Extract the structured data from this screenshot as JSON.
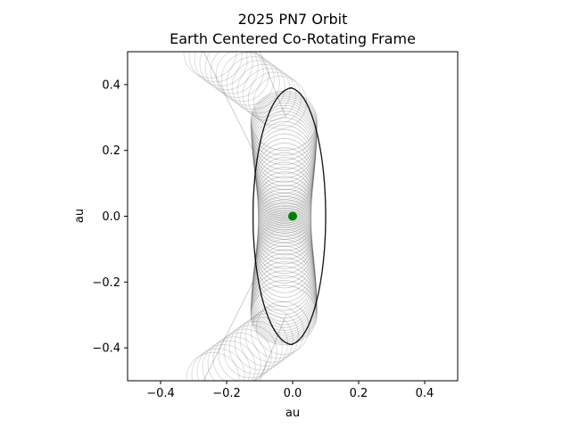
{
  "chart_data": {
    "type": "line",
    "title": "2025 PN7 Orbit",
    "subtitle": "Earth Centered Co-Rotating Frame",
    "xlabel": "au",
    "ylabel": "au",
    "xlim": [
      -0.5,
      0.5
    ],
    "ylim": [
      -0.5,
      0.5
    ],
    "xticks": [
      -0.4,
      -0.2,
      0.0,
      0.2,
      0.4
    ],
    "yticks": [
      -0.4,
      -0.2,
      0.0,
      0.2,
      0.4
    ],
    "xtick_labels": [
      "−0.4",
      "−0.2",
      "0.0",
      "0.2",
      "0.4"
    ],
    "ytick_labels": [
      "−0.4",
      "−0.2",
      "0.0",
      "0.2",
      "0.4"
    ],
    "grid": false,
    "aspect": "equal",
    "earth": {
      "x": 0.0,
      "y": 0.0,
      "color": "#008000"
    },
    "orbit_color": "#000000",
    "dense_band": {
      "x_left": -0.11,
      "x_right": 0.11,
      "y_top": 0.38,
      "y_bottom": -0.4
    },
    "faint_drift": {
      "x_left_top": -0.3,
      "x_right_top": -0.08,
      "y_top": 0.5,
      "y_bottom": -0.5
    }
  }
}
